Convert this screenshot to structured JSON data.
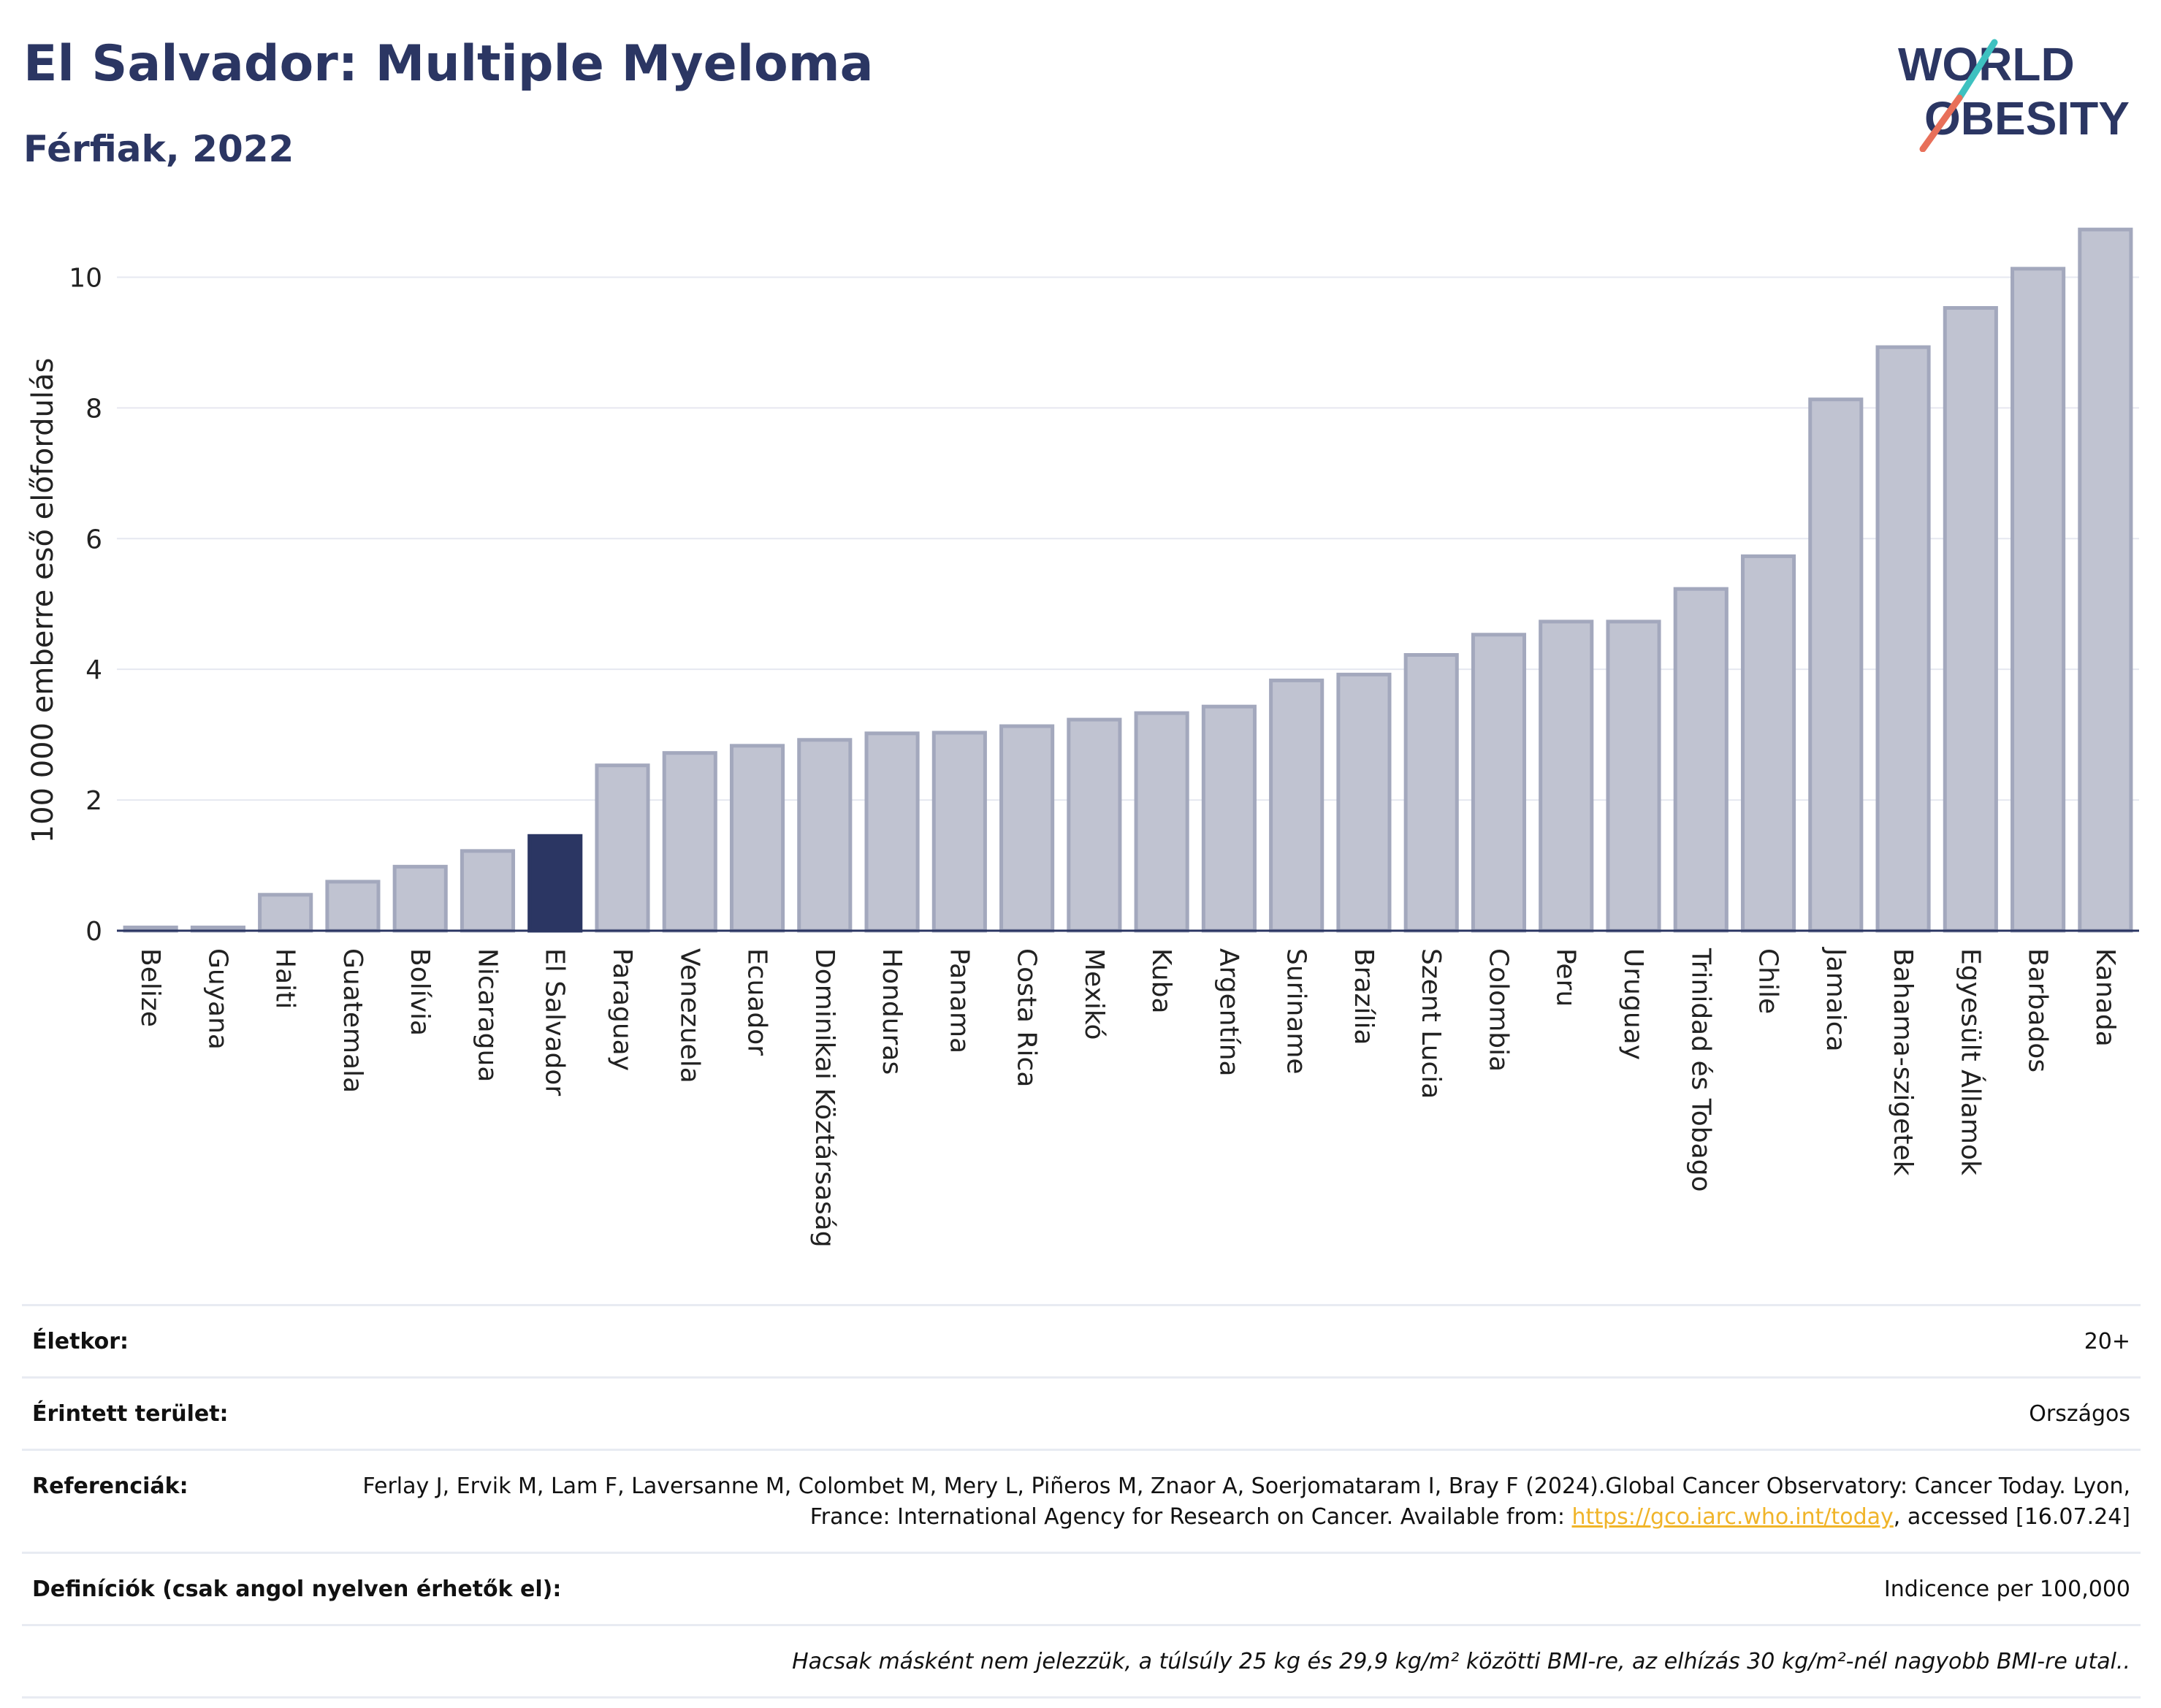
{
  "header": {
    "title": "El Salvador: Multiple Myeloma",
    "subtitle": "Férfiak, 2022",
    "logo_line1": "WORLD",
    "logo_line2": "OBESITY"
  },
  "colors": {
    "title": "#2b3663",
    "highlight_bar": "#2b3663",
    "bar": "#c0c3d1",
    "bar_border": "#a3a8bd",
    "logo_teal": "#3ec1c0",
    "logo_coral": "#e8705a",
    "link": "#f0b429"
  },
  "chart_data": {
    "type": "bar",
    "ylabel": "100 000 emberre eső előfordulás",
    "ylim": [
      0,
      11
    ],
    "yticks": [
      0,
      2,
      4,
      6,
      8,
      10
    ],
    "grid": true,
    "highlight": "El Salvador",
    "categories": [
      "Belize",
      "Guyana",
      "Haiti",
      "Guatemala",
      "Bolívia",
      "Nicaragua",
      "El Salvador",
      "Paraguay",
      "Venezuela",
      "Ecuador",
      "Dominikai Köztársaság",
      "Honduras",
      "Panama",
      "Costa Rica",
      "Mexikó",
      "Kuba",
      "Argentína",
      "Suriname",
      "Brazília",
      "Szent Lucia",
      "Colombia",
      "Peru",
      "Uruguay",
      "Trinidad és Tobago",
      "Chile",
      "Jamaica",
      "Bahama-szigetek",
      "Egyesült Államok",
      "Barbados",
      "Kanada"
    ],
    "values": [
      0.05,
      0.05,
      0.55,
      0.75,
      0.98,
      1.22,
      1.45,
      2.53,
      2.72,
      2.83,
      2.92,
      3.02,
      3.03,
      3.13,
      3.23,
      3.33,
      3.43,
      3.83,
      3.92,
      4.22,
      4.53,
      4.73,
      4.73,
      5.23,
      5.73,
      8.13,
      8.93,
      9.53,
      10.13,
      10.73
    ]
  },
  "meta": [
    {
      "label": "Életkor:",
      "value": "20+"
    },
    {
      "label": "Érintett terület:",
      "value": "Országos"
    },
    {
      "label": "Referenciák:",
      "value_pre": "Ferlay J, Ervik M, Lam F, Laversanne M, Colombet M, Mery L, Piñeros M, Znaor A, Soerjomataram I, Bray F (2024).Global Cancer Observatory: Cancer Today. Lyon, France: International Agency for Research on Cancer. Available from: ",
      "link": "https://gco.iarc.who.int/today",
      "value_post": ", accessed [16.07.24]"
    },
    {
      "label": "Definíciók (csak angol nyelven érhetők el):",
      "value": "Indicence per 100,000"
    },
    {
      "label": "",
      "value": "Hacsak másként nem jelezzük, a túlsúly 25 kg és 29,9 kg/m² közötti BMI-re, az elhízás 30 kg/m²-nél nagyobb BMI-re utal.."
    }
  ]
}
